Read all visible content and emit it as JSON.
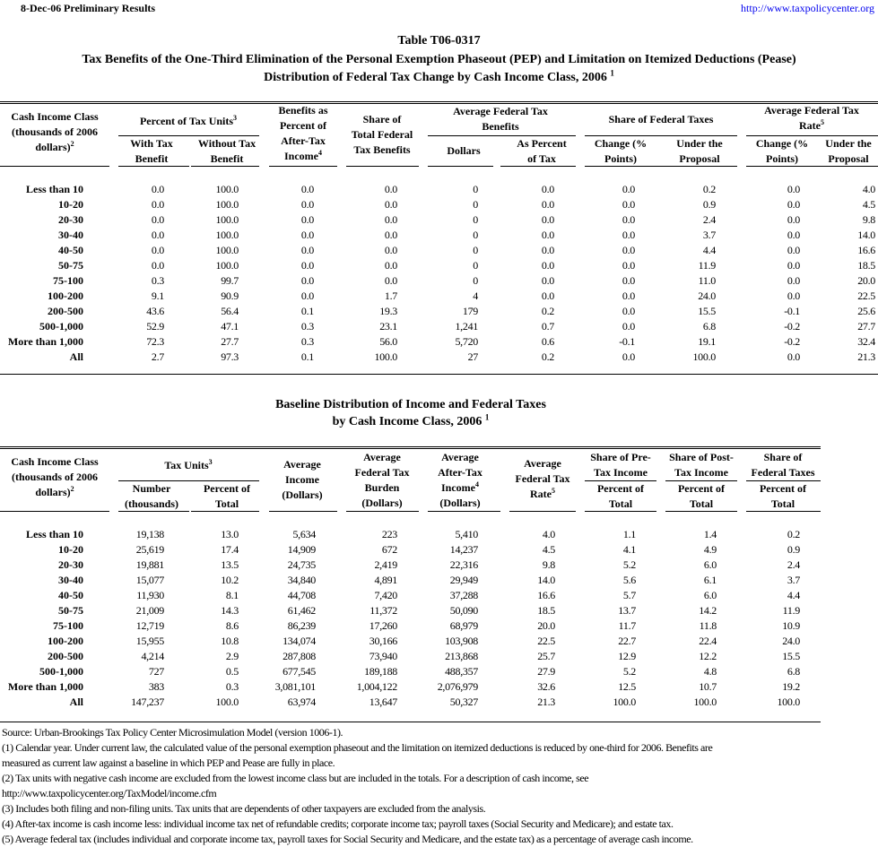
{
  "header": {
    "date": "8-Dec-06",
    "status": "Preliminary Results",
    "link": "http://www.taxpolicycenter.org"
  },
  "title": {
    "table_id": "Table T06-0317",
    "line2": "Tax Benefits of the One-Third Elimination of the Personal Exemption Phaseout (PEP) and Limitation on Itemized Deductions (Pease)",
    "line3": "Distribution of Federal Tax Change by Cash Income Class, 2006",
    "line3_note": "1"
  },
  "table1": {
    "headers": {
      "label": "Cash Income Class\n(thousands of 2006\ndollars)",
      "label_note": "2",
      "pct_units": "Percent of Tax Units",
      "pct_units_note": "3",
      "with_benefit": "With Tax\nBenefit",
      "without_benefit": "Without Tax\nBenefit",
      "benefits_pct": "Benefits as\nPercent of\nAfter-Tax\nIncome",
      "benefits_pct_note": "4",
      "share_benefits": "Share of\nTotal Federal\nTax Benefits",
      "avg_benefits": "Average Federal Tax\nBenefits",
      "dollars": "Dollars",
      "pct_of_tax": "As Percent\nof Tax",
      "share_taxes": "Share of Federal Taxes",
      "change1": "Change (%\nPoints)",
      "under1": "Under the\nProposal",
      "avg_rate": "Average Federal Tax\nRate",
      "avg_rate_note": "5",
      "change2": "Change (%\nPoints)",
      "under2": "Under the\nProposal"
    },
    "rows": [
      [
        "Less than 10",
        "0.0",
        "100.0",
        "0.0",
        "0.0",
        "0",
        "0.0",
        "0.0",
        "0.2",
        "0.0",
        "4.0"
      ],
      [
        "10-20",
        "0.0",
        "100.0",
        "0.0",
        "0.0",
        "0",
        "0.0",
        "0.0",
        "0.9",
        "0.0",
        "4.5"
      ],
      [
        "20-30",
        "0.0",
        "100.0",
        "0.0",
        "0.0",
        "0",
        "0.0",
        "0.0",
        "2.4",
        "0.0",
        "9.8"
      ],
      [
        "30-40",
        "0.0",
        "100.0",
        "0.0",
        "0.0",
        "0",
        "0.0",
        "0.0",
        "3.7",
        "0.0",
        "14.0"
      ],
      [
        "40-50",
        "0.0",
        "100.0",
        "0.0",
        "0.0",
        "0",
        "0.0",
        "0.0",
        "4.4",
        "0.0",
        "16.6"
      ],
      [
        "50-75",
        "0.0",
        "100.0",
        "0.0",
        "0.0",
        "0",
        "0.0",
        "0.0",
        "11.9",
        "0.0",
        "18.5"
      ],
      [
        "75-100",
        "0.3",
        "99.7",
        "0.0",
        "0.0",
        "0",
        "0.0",
        "0.0",
        "11.0",
        "0.0",
        "20.0"
      ],
      [
        "100-200",
        "9.1",
        "90.9",
        "0.0",
        "1.7",
        "4",
        "0.0",
        "0.0",
        "24.0",
        "0.0",
        "22.5"
      ],
      [
        "200-500",
        "43.6",
        "56.4",
        "0.1",
        "19.3",
        "179",
        "0.2",
        "0.0",
        "15.5",
        "-0.1",
        "25.6"
      ],
      [
        "500-1,000",
        "52.9",
        "47.1",
        "0.3",
        "23.1",
        "1,241",
        "0.7",
        "0.0",
        "6.8",
        "-0.2",
        "27.7"
      ],
      [
        "More than 1,000",
        "72.3",
        "27.7",
        "0.3",
        "56.0",
        "5,720",
        "0.6",
        "-0.1",
        "19.1",
        "-0.2",
        "32.4"
      ],
      [
        "All",
        "2.7",
        "97.3",
        "0.1",
        "100.0",
        "27",
        "0.2",
        "0.0",
        "100.0",
        "0.0",
        "21.3"
      ]
    ]
  },
  "title2": {
    "line1": "Baseline Distribution of Income and Federal Taxes",
    "line2": "by Cash Income Class, 2006",
    "line2_note": "1"
  },
  "table2": {
    "headers": {
      "label": "Cash Income Class\n(thousands of 2006\ndollars)",
      "label_note": "2",
      "tax_units": "Tax Units",
      "tax_units_note": "3",
      "number": "Number\n(thousands)",
      "pct_total": "Percent of\nTotal",
      "avg_income": "Average\nIncome\n(Dollars)",
      "avg_burden": "Average\nFederal Tax\nBurden\n(Dollars)",
      "avg_after_tax": "Average\nAfter-Tax\nIncome",
      "avg_after_tax_note": "4",
      "avg_after_tax_unit": "(Dollars)",
      "avg_rate": "Average\nFederal Tax\nRate",
      "avg_rate_note": "5",
      "share_pre": "Share of Pre-\nTax Income",
      "share_post": "Share of Post-\nTax Income",
      "share_taxes": "Share of\nFederal Taxes",
      "pct1": "Percent of\nTotal",
      "pct2": "Percent of\nTotal",
      "pct3": "Percent of\nTotal"
    },
    "rows": [
      [
        "Less than 10",
        "19,138",
        "13.0",
        "5,634",
        "223",
        "5,410",
        "4.0",
        "1.1",
        "1.4",
        "0.2"
      ],
      [
        "10-20",
        "25,619",
        "17.4",
        "14,909",
        "672",
        "14,237",
        "4.5",
        "4.1",
        "4.9",
        "0.9"
      ],
      [
        "20-30",
        "19,881",
        "13.5",
        "24,735",
        "2,419",
        "22,316",
        "9.8",
        "5.2",
        "6.0",
        "2.4"
      ],
      [
        "30-40",
        "15,077",
        "10.2",
        "34,840",
        "4,891",
        "29,949",
        "14.0",
        "5.6",
        "6.1",
        "3.7"
      ],
      [
        "40-50",
        "11,930",
        "8.1",
        "44,708",
        "7,420",
        "37,288",
        "16.6",
        "5.7",
        "6.0",
        "4.4"
      ],
      [
        "50-75",
        "21,009",
        "14.3",
        "61,462",
        "11,372",
        "50,090",
        "18.5",
        "13.7",
        "14.2",
        "11.9"
      ],
      [
        "75-100",
        "12,719",
        "8.6",
        "86,239",
        "17,260",
        "68,979",
        "20.0",
        "11.7",
        "11.8",
        "10.9"
      ],
      [
        "100-200",
        "15,955",
        "10.8",
        "134,074",
        "30,166",
        "103,908",
        "22.5",
        "22.7",
        "22.4",
        "24.0"
      ],
      [
        "200-500",
        "4,214",
        "2.9",
        "287,808",
        "73,940",
        "213,868",
        "25.7",
        "12.9",
        "12.2",
        "15.5"
      ],
      [
        "500-1,000",
        "727",
        "0.5",
        "677,545",
        "189,188",
        "488,357",
        "27.9",
        "5.2",
        "4.8",
        "6.8"
      ],
      [
        "More than 1,000",
        "383",
        "0.3",
        "3,081,101",
        "1,004,122",
        "2,076,979",
        "32.6",
        "12.5",
        "10.7",
        "19.2"
      ],
      [
        "All",
        "147,237",
        "100.0",
        "63,974",
        "13,647",
        "50,327",
        "21.3",
        "100.0",
        "100.0",
        "100.0"
      ]
    ]
  },
  "footnotes": [
    "Source: Urban-Brookings Tax Policy Center Microsimulation Model (version 1006-1).",
    "(1) Calendar year. Under current law, the calculated value of the personal exemption phaseout and the limitation on itemized deductions is reduced by one-third for 2006.  Benefits are",
    "measured as current law against a baseline in which PEP and Pease are fully in place.",
    "(2) Tax units with negative cash income are excluded from the lowest income class but are included in the totals. For a description of cash income, see",
    "http://www.taxpolicycenter.org/TaxModel/income.cfm",
    "(3) Includes both filing and non-filing units.  Tax units that are dependents of other taxpayers are excluded from the analysis.",
    "(4) After-tax income is cash income less: individual income tax net of refundable credits; corporate income tax; payroll taxes (Social Security and Medicare); and estate tax.",
    "(5) Average federal tax (includes individual and corporate income tax, payroll taxes for Social Security and Medicare, and the estate tax) as a percentage of average cash income."
  ]
}
